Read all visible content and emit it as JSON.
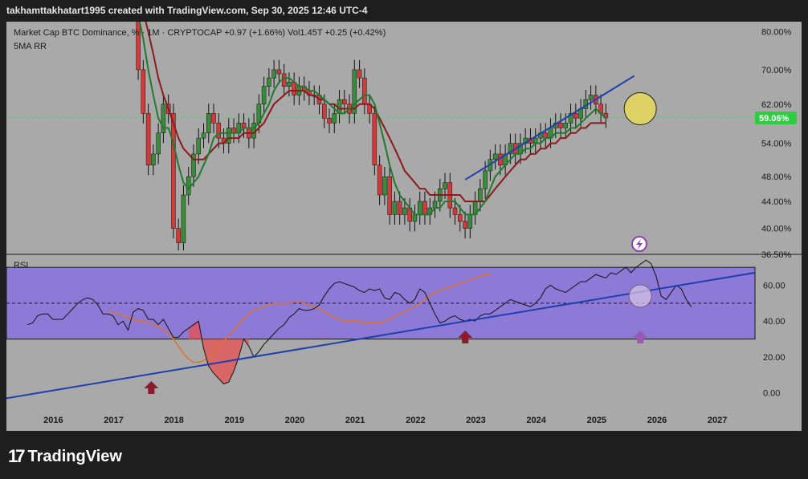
{
  "header": {
    "attribution": "takhamttakhatart1995 created with TradingView.com, Sep 30, 2025 12:46 UTC-4"
  },
  "legend": {
    "title": "Market Cap BTC Dominance, %  ·  1M  ·  CRYPTOCAP  +0.97 (+1.66%)  Vol1.45T  +0.25 (+0.42%)",
    "ma_label": "5MA RR",
    "rsi_label": "RSI"
  },
  "footer": {
    "brand": "TradingView"
  },
  "colors": {
    "background": "#a9a9a9",
    "up": "#3a8c3a",
    "down": "#d33a3a",
    "ma_fast": "#1f7a2c",
    "ma_slow": "#8b1a1a",
    "trendline": "#1f3fb0",
    "rsi_band": "#8c7ad6",
    "rsi_signal": "#e07030",
    "price_badge": "#2ecc40",
    "highlight": "#e8d85a",
    "arrow": "#8b1a2a"
  },
  "chart_data": [
    {
      "type": "candlestick",
      "title": "Market Cap BTC Dominance, %",
      "interval": "1M",
      "source": "CRYPTOCAP",
      "last_price": "59.06%",
      "y_scale": "log",
      "ylim": [
        36.5,
        82
      ],
      "y_ticks": [
        "80.00%",
        "70.00%",
        "62.00%",
        "54.00%",
        "48.00%",
        "44.00%",
        "40.00%",
        "36.50%"
      ],
      "y_tick_values": [
        80,
        70,
        62,
        54,
        48,
        44,
        40,
        36.5
      ],
      "x_ticks": [
        "2016",
        "2017",
        "2018",
        "2019",
        "2020",
        "2021",
        "2022",
        "2023",
        "2024",
        "2025",
        "2026",
        "2027"
      ],
      "x_tick_values": [
        2016,
        2017,
        2018,
        2019,
        2020,
        2021,
        2022,
        2023,
        2024,
        2025,
        2026,
        2027
      ],
      "xlim": [
        2015.2,
        2027.6
      ],
      "candle_start": 2017.3,
      "candle_interval_years": 0.0833,
      "closes": [
        88,
        70,
        60,
        50,
        52,
        56,
        62,
        60,
        40,
        38,
        45,
        48,
        52,
        55,
        56,
        60,
        58,
        55,
        54,
        57,
        56,
        58,
        57,
        55,
        58,
        62,
        66,
        68,
        70,
        69,
        66,
        67,
        64,
        66,
        65,
        64,
        64,
        62,
        59,
        58,
        60,
        63,
        62,
        60,
        70,
        68,
        62,
        60,
        50,
        45,
        48,
        42,
        44,
        42,
        43,
        41,
        42,
        44,
        42,
        43,
        44,
        46,
        47,
        43,
        42,
        41,
        40,
        42,
        44,
        46,
        49,
        51,
        52,
        50,
        52,
        54,
        52,
        54,
        55,
        54,
        55,
        56,
        55,
        57,
        58,
        57,
        58,
        60,
        59,
        61,
        63,
        64,
        62,
        60,
        59.06
      ],
      "ma_fast": [
        88,
        85,
        78,
        70,
        64,
        59,
        57,
        57,
        54,
        50,
        47,
        46,
        47,
        48,
        50,
        52,
        55,
        56,
        56,
        56,
        56,
        56,
        57,
        57,
        57,
        58,
        60,
        62,
        65,
        67,
        68,
        68,
        67,
        66,
        66,
        65,
        65,
        64,
        63,
        62,
        61,
        60,
        60,
        61,
        62,
        63,
        64,
        64,
        62,
        58,
        54,
        50,
        47,
        45,
        44,
        43,
        42,
        42,
        42,
        42,
        43,
        43,
        44,
        44,
        44,
        43,
        42,
        42,
        42,
        43,
        44,
        46,
        48,
        49,
        50,
        51,
        52,
        52,
        53,
        53,
        54,
        54,
        55,
        55,
        56,
        56,
        56,
        57,
        57,
        58,
        59,
        60,
        61,
        60,
        59
      ],
      "ma_slow": [
        92,
        90,
        86,
        80,
        74,
        68,
        64,
        61,
        58,
        55,
        53,
        52,
        51,
        51,
        51,
        52,
        53,
        54,
        54,
        55,
        55,
        55,
        56,
        56,
        56,
        57,
        58,
        60,
        62,
        63,
        64,
        65,
        65,
        65,
        65,
        64,
        64,
        63,
        63,
        62,
        62,
        61,
        61,
        61,
        61,
        62,
        62,
        62,
        61,
        59,
        57,
        55,
        53,
        51,
        49,
        48,
        47,
        46,
        46,
        45,
        45,
        45,
        45,
        45,
        45,
        45,
        44,
        44,
        44,
        44,
        44,
        45,
        46,
        47,
        48,
        49,
        50,
        51,
        51,
        52,
        52,
        53,
        53,
        54,
        54,
        55,
        55,
        56,
        56,
        57,
        57,
        58,
        58,
        58,
        58
      ],
      "trendline": {
        "from": {
          "x": 2022.8,
          "y": 47.5
        },
        "to": {
          "x": 2025.6,
          "y": 68.5
        }
      },
      "highlight": {
        "x": 2025.7,
        "y": 61
      }
    },
    {
      "type": "line",
      "title": "RSI",
      "ylim": [
        -10,
        75
      ],
      "y_ticks": [
        "60.00",
        "40.00",
        "20.00",
        "0.00"
      ],
      "y_tick_values": [
        60,
        40,
        20,
        0
      ],
      "band": [
        30,
        70
      ],
      "midline": 50,
      "x_start": 2015.55,
      "x_step": 0.0833,
      "series": [
        {
          "id": "rsi",
          "values": [
            38,
            39,
            43,
            44,
            44,
            41,
            41,
            41,
            44,
            47,
            50,
            52,
            53,
            52,
            49,
            44,
            44,
            43,
            38,
            40,
            35,
            45,
            47,
            46,
            41,
            41,
            38,
            41,
            36,
            31,
            31,
            34,
            36,
            38,
            40,
            25,
            15,
            11,
            8,
            5,
            6,
            12,
            20,
            30,
            26,
            20,
            23,
            27,
            30,
            33,
            36,
            38,
            42,
            44,
            47,
            46,
            46,
            47,
            49,
            54,
            58,
            61,
            62,
            61,
            60,
            59,
            57,
            56,
            58,
            57,
            58,
            53,
            52,
            56,
            55,
            52,
            50,
            52,
            58,
            56,
            50,
            44,
            39,
            40,
            42,
            43,
            41,
            40,
            41,
            40,
            43,
            44,
            44,
            46,
            48,
            50,
            52,
            51,
            50,
            49,
            48,
            50,
            53,
            58,
            60,
            58,
            57,
            56,
            58,
            60,
            62,
            62,
            64,
            66,
            65,
            64,
            67,
            66,
            68,
            70,
            67,
            70,
            72,
            74,
            72,
            65,
            54,
            52,
            56,
            60,
            58,
            52,
            48
          ],
          "from_index": 0
        },
        {
          "id": "rsi_ma",
          "values": [
            45,
            45,
            44,
            43,
            42,
            41,
            40,
            40,
            39,
            38,
            37,
            35,
            33,
            30,
            26,
            22,
            19,
            17,
            17,
            18,
            20,
            23,
            26,
            29,
            32,
            35,
            38,
            41,
            44,
            46,
            47,
            48,
            49,
            50,
            50,
            50,
            50,
            51,
            51,
            50,
            49,
            48,
            47,
            45,
            44,
            42,
            41,
            40,
            40,
            40,
            40,
            39,
            39,
            39,
            39,
            40,
            41,
            43,
            44,
            45,
            47,
            48,
            50,
            52,
            54,
            56,
            57,
            58,
            59,
            60,
            61,
            62,
            63,
            64,
            65,
            66,
            66
          ],
          "from_index": 16
        }
      ],
      "trendline": {
        "from": {
          "x": 2015.1,
          "y": -3
        },
        "to": {
          "x": 2027.6,
          "y": 67
        }
      },
      "highlight": {
        "x": 2025.7,
        "y": 54
      },
      "arrows": [
        {
          "x": 2017.6
        },
        {
          "x": 2022.8
        },
        {
          "x": 2025.7
        }
      ]
    }
  ]
}
